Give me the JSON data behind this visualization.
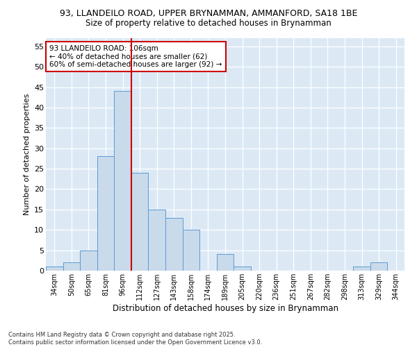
{
  "title1": "93, LLANDEILO ROAD, UPPER BRYNAMMAN, AMMANFORD, SA18 1BE",
  "title2": "Size of property relative to detached houses in Brynamman",
  "xlabel": "Distribution of detached houses by size in Brynamman",
  "ylabel": "Number of detached properties",
  "categories": [
    "34sqm",
    "50sqm",
    "65sqm",
    "81sqm",
    "96sqm",
    "112sqm",
    "127sqm",
    "143sqm",
    "158sqm",
    "174sqm",
    "189sqm",
    "205sqm",
    "220sqm",
    "236sqm",
    "251sqm",
    "267sqm",
    "282sqm",
    "298sqm",
    "313sqm",
    "329sqm",
    "344sqm"
  ],
  "values": [
    1,
    2,
    5,
    28,
    44,
    24,
    15,
    13,
    10,
    0,
    4,
    1,
    0,
    0,
    0,
    0,
    0,
    0,
    1,
    2,
    0
  ],
  "bar_color": "#c9daea",
  "bar_edge_color": "#5b9bd5",
  "vline_x_pos": 4.5,
  "vline_color": "#cc0000",
  "annotation_text": "93 LLANDEILO ROAD: 106sqm\n← 40% of detached houses are smaller (62)\n60% of semi-detached houses are larger (92) →",
  "annotation_box_color": "#ffffff",
  "annotation_box_edge_color": "#cc0000",
  "ylim": [
    0,
    57
  ],
  "yticks": [
    0,
    5,
    10,
    15,
    20,
    25,
    30,
    35,
    40,
    45,
    50,
    55
  ],
  "footer": "Contains HM Land Registry data © Crown copyright and database right 2025.\nContains public sector information licensed under the Open Government Licence v3.0.",
  "bg_color": "#ffffff",
  "plot_bg_color": "#dce9f5",
  "grid_color": "#ffffff"
}
